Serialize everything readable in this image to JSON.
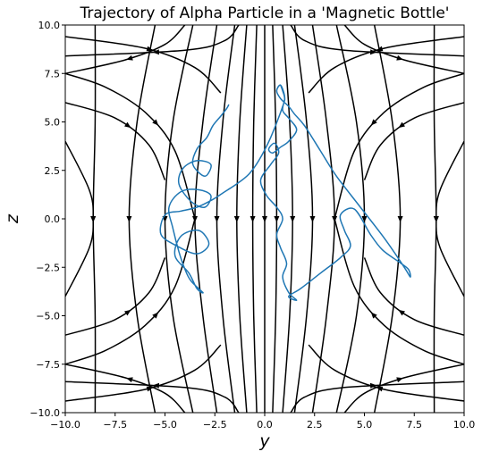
{
  "chart_data": {
    "type": "streamplot",
    "title": "Trajectory of Alpha Particle in a 'Magnetic Bottle'",
    "xlabel": "y",
    "ylabel": "z",
    "xlim": [
      -10,
      10
    ],
    "ylim": [
      -10,
      10
    ],
    "xticks": [
      "−10.0",
      "−7.5",
      "−5.0",
      "−2.5",
      "0.0",
      "2.5",
      "5.0",
      "7.5",
      "10.0"
    ],
    "yticks": [
      "−10.0",
      "−7.5",
      "−5.0",
      "−2.5",
      "0.0",
      "2.5",
      "5.0",
      "7.5",
      "10.0"
    ],
    "field_lines": [
      {
        "points": [
          [
            0,
            10
          ],
          [
            0,
            5
          ],
          [
            0,
            0
          ],
          [
            0,
            -5
          ],
          [
            0,
            -10
          ]
        ]
      },
      {
        "points": [
          [
            0.4,
            10
          ],
          [
            0.55,
            5
          ],
          [
            0.6,
            0
          ],
          [
            0.55,
            -5
          ],
          [
            0.4,
            -10
          ]
        ]
      },
      {
        "points": [
          [
            -0.4,
            10
          ],
          [
            -0.55,
            5
          ],
          [
            -0.6,
            0
          ],
          [
            -0.55,
            -5
          ],
          [
            -0.4,
            -10
          ]
        ]
      },
      {
        "points": [
          [
            0.9,
            10
          ],
          [
            1.25,
            5
          ],
          [
            1.4,
            0
          ],
          [
            1.25,
            -5
          ],
          [
            0.9,
            -10
          ]
        ]
      },
      {
        "points": [
          [
            -0.9,
            10
          ],
          [
            -1.25,
            5
          ],
          [
            -1.4,
            0
          ],
          [
            -1.25,
            -5
          ],
          [
            -0.9,
            -10
          ]
        ]
      },
      {
        "points": [
          [
            1.5,
            10
          ],
          [
            2.1,
            5
          ],
          [
            2.4,
            0
          ],
          [
            2.1,
            -5
          ],
          [
            1.5,
            -10
          ]
        ]
      },
      {
        "points": [
          [
            -1.5,
            10
          ],
          [
            -2.1,
            5
          ],
          [
            -2.4,
            0
          ],
          [
            -2.1,
            -5
          ],
          [
            -1.5,
            -10
          ]
        ]
      },
      {
        "points": [
          [
            2.4,
            10
          ],
          [
            3.1,
            5
          ],
          [
            3.5,
            0
          ],
          [
            3.1,
            -5
          ],
          [
            2.4,
            -10
          ]
        ]
      },
      {
        "points": [
          [
            -2.4,
            10
          ],
          [
            -3.1,
            5
          ],
          [
            -3.5,
            0
          ],
          [
            -3.1,
            -5
          ],
          [
            -2.4,
            -10
          ]
        ]
      },
      {
        "points": [
          [
            3.6,
            10
          ],
          [
            4.6,
            5
          ],
          [
            5.0,
            0
          ],
          [
            4.6,
            -5
          ],
          [
            3.6,
            -10
          ]
        ]
      },
      {
        "points": [
          [
            -3.6,
            10
          ],
          [
            -4.6,
            5
          ],
          [
            -5.0,
            0
          ],
          [
            -4.6,
            -5
          ],
          [
            -3.6,
            -10
          ]
        ]
      },
      {
        "points": [
          [
            5.5,
            10
          ],
          [
            6.4,
            5
          ],
          [
            6.8,
            0
          ],
          [
            6.4,
            -5
          ],
          [
            5.5,
            -10
          ]
        ]
      },
      {
        "points": [
          [
            -5.5,
            10
          ],
          [
            -6.4,
            5
          ],
          [
            -6.8,
            0
          ],
          [
            -6.4,
            -5
          ],
          [
            -5.5,
            -10
          ]
        ]
      },
      {
        "points": [
          [
            8.5,
            10
          ],
          [
            8.5,
            5
          ],
          [
            8.6,
            0
          ],
          [
            8.5,
            -5
          ],
          [
            8.5,
            -10
          ]
        ]
      },
      {
        "points": [
          [
            -8.5,
            10
          ],
          [
            -8.5,
            5
          ],
          [
            -8.6,
            0
          ],
          [
            -8.5,
            -5
          ],
          [
            -8.5,
            -10
          ]
        ]
      },
      {
        "points": [
          [
            10,
            4
          ],
          [
            8.8,
            1.5
          ],
          [
            8.6,
            0
          ],
          [
            8.8,
            -1.5
          ],
          [
            10,
            -4
          ]
        ]
      },
      {
        "points": [
          [
            -10,
            4
          ],
          [
            -8.8,
            1.5
          ],
          [
            -8.6,
            0
          ],
          [
            -8.8,
            -1.5
          ],
          [
            -10,
            -4
          ]
        ]
      },
      {
        "points": [
          [
            10,
            7.5
          ],
          [
            8,
            6.8
          ],
          [
            6,
            5.5
          ],
          [
            4.5,
            3.5
          ],
          [
            3.5,
            0
          ]
        ]
      },
      {
        "points": [
          [
            -10,
            7.5
          ],
          [
            -8,
            6.8
          ],
          [
            -6,
            5.5
          ],
          [
            -4.5,
            3.5
          ],
          [
            -3.5,
            0
          ]
        ]
      },
      {
        "points": [
          [
            10,
            -7.5
          ],
          [
            8,
            -6.8
          ],
          [
            6,
            -5.5
          ],
          [
            4.5,
            -3.5
          ],
          [
            3.5,
            0
          ]
        ]
      },
      {
        "points": [
          [
            -10,
            -7.5
          ],
          [
            -8,
            -6.8
          ],
          [
            -6,
            -5.5
          ],
          [
            -4.5,
            -3.5
          ],
          [
            -3.5,
            0
          ]
        ]
      },
      {
        "points": [
          [
            10,
            9.4
          ],
          [
            6,
            8.8
          ],
          [
            3.5,
            7.8
          ],
          [
            2.2,
            6.5
          ]
        ]
      },
      {
        "points": [
          [
            -10,
            9.4
          ],
          [
            -6,
            8.8
          ],
          [
            -3.5,
            7.8
          ],
          [
            -2.2,
            6.5
          ]
        ]
      },
      {
        "points": [
          [
            10,
            -9.4
          ],
          [
            6,
            -8.8
          ],
          [
            3.5,
            -7.8
          ],
          [
            2.2,
            -6.5
          ]
        ]
      },
      {
        "points": [
          [
            -10,
            -9.4
          ],
          [
            -6,
            -8.8
          ],
          [
            -3.5,
            -7.8
          ],
          [
            -2.2,
            -6.5
          ]
        ]
      },
      {
        "points": [
          [
            1.3,
            10
          ],
          [
            2.0,
            9.2
          ],
          [
            4.0,
            8.7
          ],
          [
            10,
            8.4
          ]
        ]
      },
      {
        "points": [
          [
            -1.3,
            10
          ],
          [
            -2.0,
            9.2
          ],
          [
            -4.0,
            8.7
          ],
          [
            -10,
            8.4
          ]
        ]
      },
      {
        "points": [
          [
            1.3,
            -10
          ],
          [
            2.0,
            -9.2
          ],
          [
            4.0,
            -8.7
          ],
          [
            10,
            -8.4
          ]
        ]
      },
      {
        "points": [
          [
            -1.3,
            -10
          ],
          [
            -2.0,
            -9.2
          ],
          [
            -4.0,
            -8.7
          ],
          [
            -10,
            -8.4
          ]
        ]
      },
      {
        "points": [
          [
            4.0,
            10
          ],
          [
            5.0,
            9.0
          ],
          [
            7.0,
            8.2
          ],
          [
            10,
            7.5
          ]
        ]
      },
      {
        "points": [
          [
            -4.0,
            10
          ],
          [
            -5.0,
            9.0
          ],
          [
            -7.0,
            8.2
          ],
          [
            -10,
            7.5
          ]
        ]
      },
      {
        "points": [
          [
            4.0,
            -10
          ],
          [
            5.0,
            -9.0
          ],
          [
            7.0,
            -8.2
          ],
          [
            10,
            -7.5
          ]
        ]
      },
      {
        "points": [
          [
            -4.0,
            -10
          ],
          [
            -5.0,
            -9.0
          ],
          [
            -7.0,
            -8.2
          ],
          [
            -10,
            -7.5
          ]
        ]
      },
      {
        "points": [
          [
            10,
            6.0
          ],
          [
            7.5,
            5.2
          ],
          [
            5.8,
            3.8
          ],
          [
            5.0,
            2.0
          ]
        ]
      },
      {
        "points": [
          [
            -10,
            6.0
          ],
          [
            -7.5,
            5.2
          ],
          [
            -5.8,
            3.8
          ],
          [
            -5.0,
            2.0
          ]
        ]
      },
      {
        "points": [
          [
            10,
            -6.0
          ],
          [
            7.5,
            -5.2
          ],
          [
            5.8,
            -3.8
          ],
          [
            5.0,
            -2.0
          ]
        ]
      },
      {
        "points": [
          [
            -10,
            -6.0
          ],
          [
            -7.5,
            -5.2
          ],
          [
            -5.8,
            -3.8
          ],
          [
            -5.0,
            -2.0
          ]
        ]
      }
    ],
    "trajectory": [
      [
        0.8,
        6.9
      ],
      [
        0.9,
        6.6
      ],
      [
        1.0,
        6.2
      ],
      [
        0.9,
        5.6
      ],
      [
        1.2,
        5.2
      ],
      [
        1.6,
        4.6
      ],
      [
        1.2,
        4.0
      ],
      [
        0.8,
        3.7
      ],
      [
        0.4,
        3.4
      ],
      [
        0.2,
        3.6
      ],
      [
        0.5,
        3.9
      ],
      [
        0.7,
        3.4
      ],
      [
        0.3,
        2.8
      ],
      [
        -0.2,
        2.0
      ],
      [
        0.1,
        1.2
      ],
      [
        0.6,
        0.6
      ],
      [
        0.9,
        0.0
      ],
      [
        0.6,
        -0.8
      ],
      [
        0.8,
        -1.5
      ],
      [
        1.1,
        -2.3
      ],
      [
        0.9,
        -3.0
      ],
      [
        1.2,
        -3.8
      ],
      [
        1.6,
        -4.2
      ],
      [
        1.2,
        -4.0
      ],
      [
        1.8,
        -3.6
      ],
      [
        2.8,
        -2.8
      ],
      [
        3.8,
        -2.0
      ],
      [
        4.3,
        -1.4
      ],
      [
        4.0,
        -0.6
      ],
      [
        3.8,
        0.2
      ],
      [
        4.5,
        0.5
      ],
      [
        5.3,
        -0.8
      ],
      [
        5.9,
        -1.6
      ],
      [
        6.7,
        -2.2
      ],
      [
        7.2,
        -2.6
      ],
      [
        7.3,
        -3.0
      ],
      [
        7.0,
        -2.5
      ],
      [
        6.0,
        -1.0
      ],
      [
        4.8,
        0.6
      ],
      [
        3.6,
        2.2
      ],
      [
        2.8,
        3.5
      ],
      [
        2.0,
        4.8
      ],
      [
        1.5,
        5.4
      ],
      [
        1.2,
        5.8
      ],
      [
        0.8,
        6.2
      ],
      [
        0.6,
        6.6
      ],
      [
        0.8,
        6.9
      ],
      [
        1.0,
        6.3
      ],
      [
        0.9,
        5.8
      ],
      [
        0.3,
        4.2
      ],
      [
        -0.3,
        3.0
      ],
      [
        -0.8,
        2.3
      ],
      [
        -1.4,
        1.8
      ],
      [
        -2.0,
        1.4
      ],
      [
        -2.6,
        1.0
      ],
      [
        -3.4,
        0.6
      ],
      [
        -4.2,
        0.4
      ],
      [
        -5.0,
        0.2
      ],
      [
        -5.2,
        -0.8
      ],
      [
        -4.4,
        -1.4
      ],
      [
        -3.4,
        -1.8
      ],
      [
        -2.8,
        -1.3
      ],
      [
        -3.3,
        -0.6
      ],
      [
        -4.2,
        -0.9
      ],
      [
        -4.5,
        -1.9
      ],
      [
        -3.8,
        -2.8
      ],
      [
        -3.4,
        -3.6
      ],
      [
        -3.1,
        -3.8
      ],
      [
        -3.7,
        -3.2
      ],
      [
        -4.0,
        -2.6
      ],
      [
        -4.3,
        -1.7
      ],
      [
        -4.6,
        -0.5
      ],
      [
        -4.8,
        0.6
      ],
      [
        -4.2,
        1.4
      ],
      [
        -3.3,
        1.5
      ],
      [
        -2.7,
        1.2
      ],
      [
        -3.0,
        0.6
      ],
      [
        -3.7,
        0.9
      ],
      [
        -4.3,
        1.8
      ],
      [
        -4.1,
        2.6
      ],
      [
        -3.4,
        3.0
      ],
      [
        -2.7,
        2.8
      ],
      [
        -3.0,
        2.2
      ],
      [
        -3.6,
        2.8
      ],
      [
        -3.4,
        3.6
      ],
      [
        -2.9,
        4.2
      ],
      [
        -2.6,
        4.8
      ],
      [
        -2.2,
        5.3
      ],
      [
        -1.9,
        5.7
      ],
      [
        -1.8,
        5.9
      ]
    ],
    "colors": {
      "field_lines": "#000000",
      "trajectory": "#1f77b4"
    },
    "grid": false
  }
}
